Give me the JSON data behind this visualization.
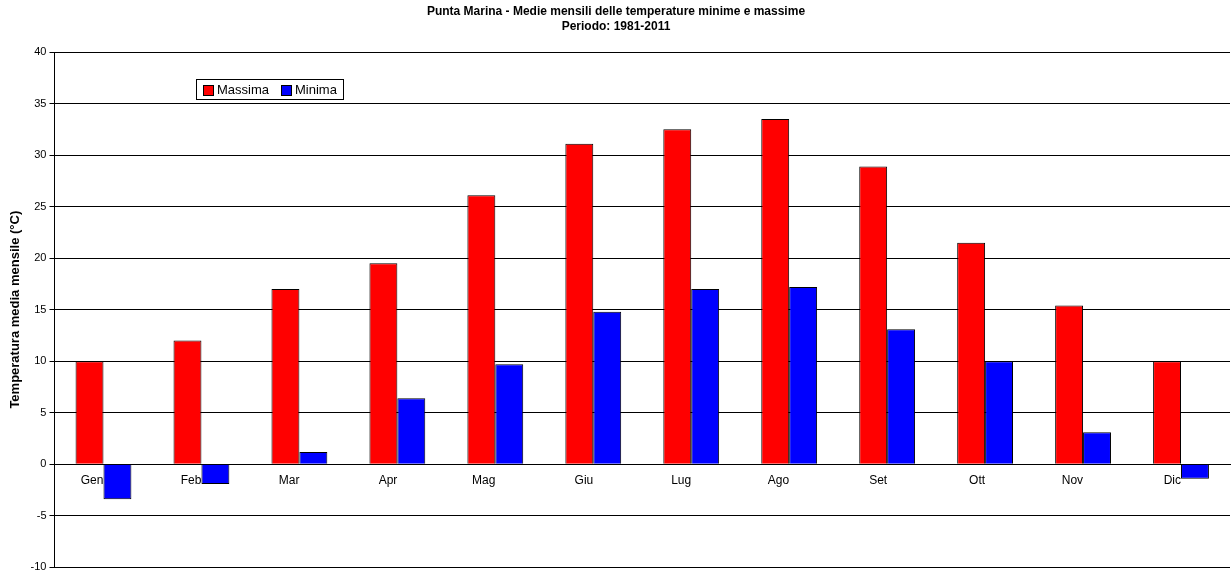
{
  "chart_data": {
    "type": "bar",
    "title": "Punta Marina - Medie mensili delle temperature minime e massime",
    "subtitle": "Periodo: 1981-2011",
    "ylabel": "Temperatura media mensile (°C)",
    "categories": [
      "Gen",
      "Feb",
      "Mar",
      "Apr",
      "Mag",
      "Giu",
      "Lug",
      "Ago",
      "Set",
      "Ott",
      "Nov",
      "Dic"
    ],
    "series": [
      {
        "name": "Massima",
        "color": "#ff0000",
        "values": [
          10,
          12,
          17,
          19.5,
          26.1,
          31.1,
          32.5,
          33.5,
          28.9,
          21.5,
          15.4,
          10
        ]
      },
      {
        "name": "Minima",
        "color": "#0000ff",
        "values": [
          -3.4,
          -1.9,
          1.2,
          6.4,
          9.7,
          14.8,
          17,
          17.2,
          13.1,
          10,
          3.1,
          -1.4
        ]
      }
    ],
    "ylim": [
      -10,
      40
    ],
    "yticks": [
      -10,
      -5,
      0,
      5,
      10,
      15,
      20,
      25,
      30,
      35,
      40
    ],
    "grid": "y",
    "legend": "top left"
  }
}
